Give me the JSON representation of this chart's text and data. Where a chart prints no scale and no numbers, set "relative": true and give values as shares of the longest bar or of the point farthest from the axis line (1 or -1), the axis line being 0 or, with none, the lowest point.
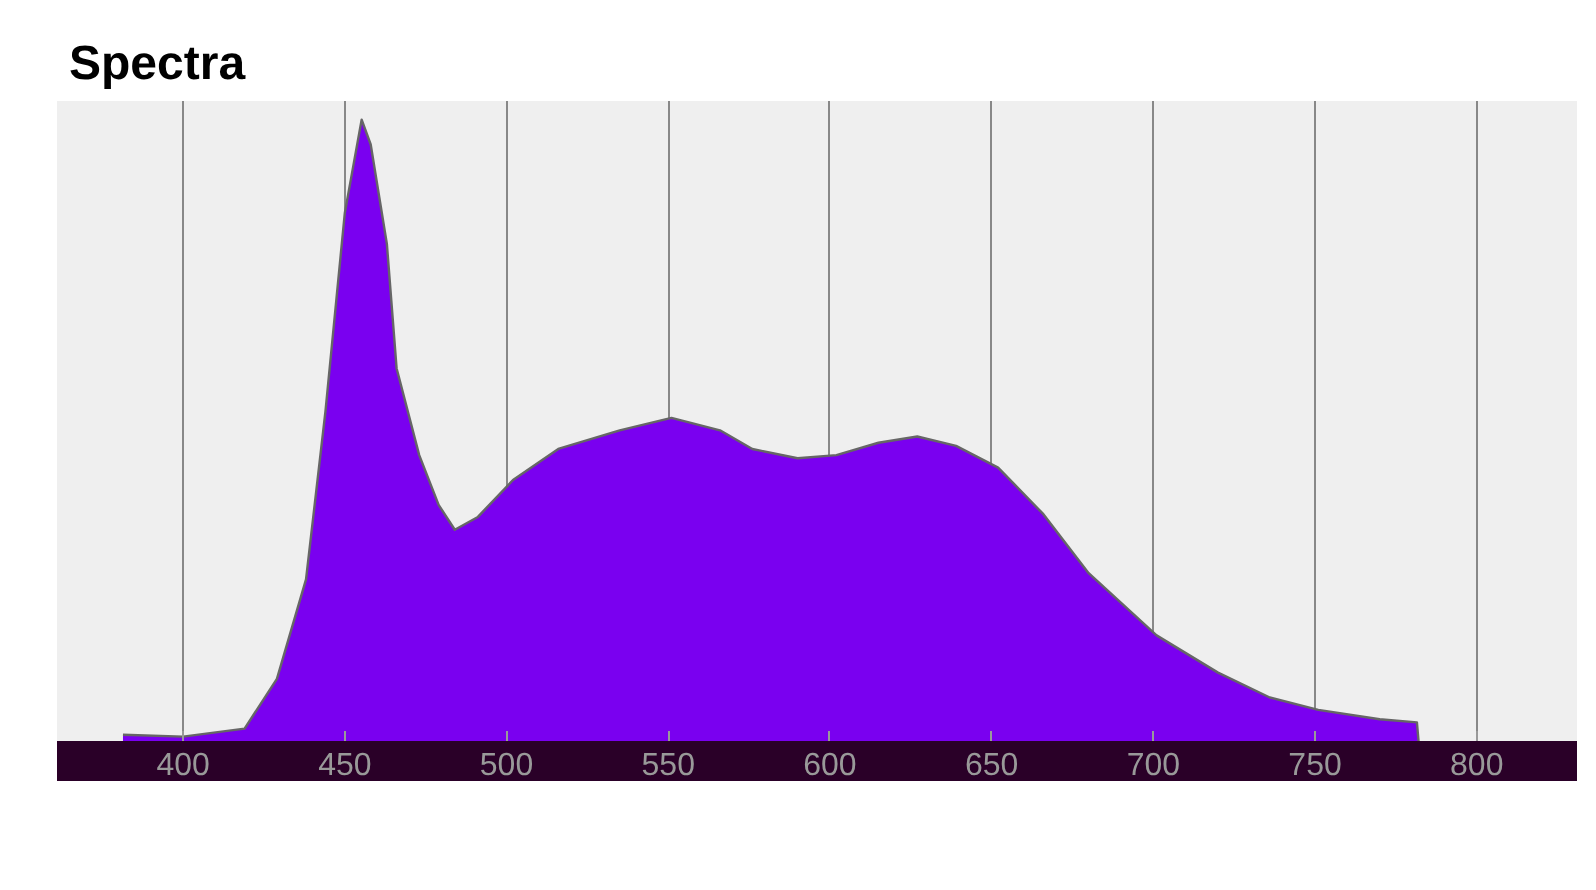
{
  "chart_data": {
    "type": "area",
    "title": "Spectra",
    "relative": true,
    "x": [
      381.4,
      400,
      419,
      429,
      438,
      444,
      450,
      455.2,
      458,
      463,
      466,
      473,
      479,
      484,
      491,
      502,
      516,
      535,
      551,
      566,
      576,
      590,
      602,
      615,
      627,
      639,
      652,
      666,
      680,
      701,
      720,
      736,
      751,
      770,
      781.5,
      782
    ],
    "series": [
      {
        "color": "#7a00f0",
        "values": [
          0.01,
          0.007,
          0.02,
          0.1,
          0.26,
          0.53,
          0.85,
          1.0,
          0.96,
          0.8,
          0.6,
          0.46,
          0.38,
          0.34,
          0.36,
          0.42,
          0.47,
          0.5,
          0.52,
          0.5,
          0.47,
          0.455,
          0.46,
          0.48,
          0.49,
          0.475,
          0.44,
          0.365,
          0.27,
          0.17,
          0.11,
          0.07,
          0.05,
          0.035,
          0.03,
          0
        ]
      }
    ],
    "xlim": [
      361,
      831
    ],
    "xticks": [
      400,
      450,
      500,
      550,
      600,
      650,
      700,
      750,
      800
    ],
    "grid": "x"
  }
}
